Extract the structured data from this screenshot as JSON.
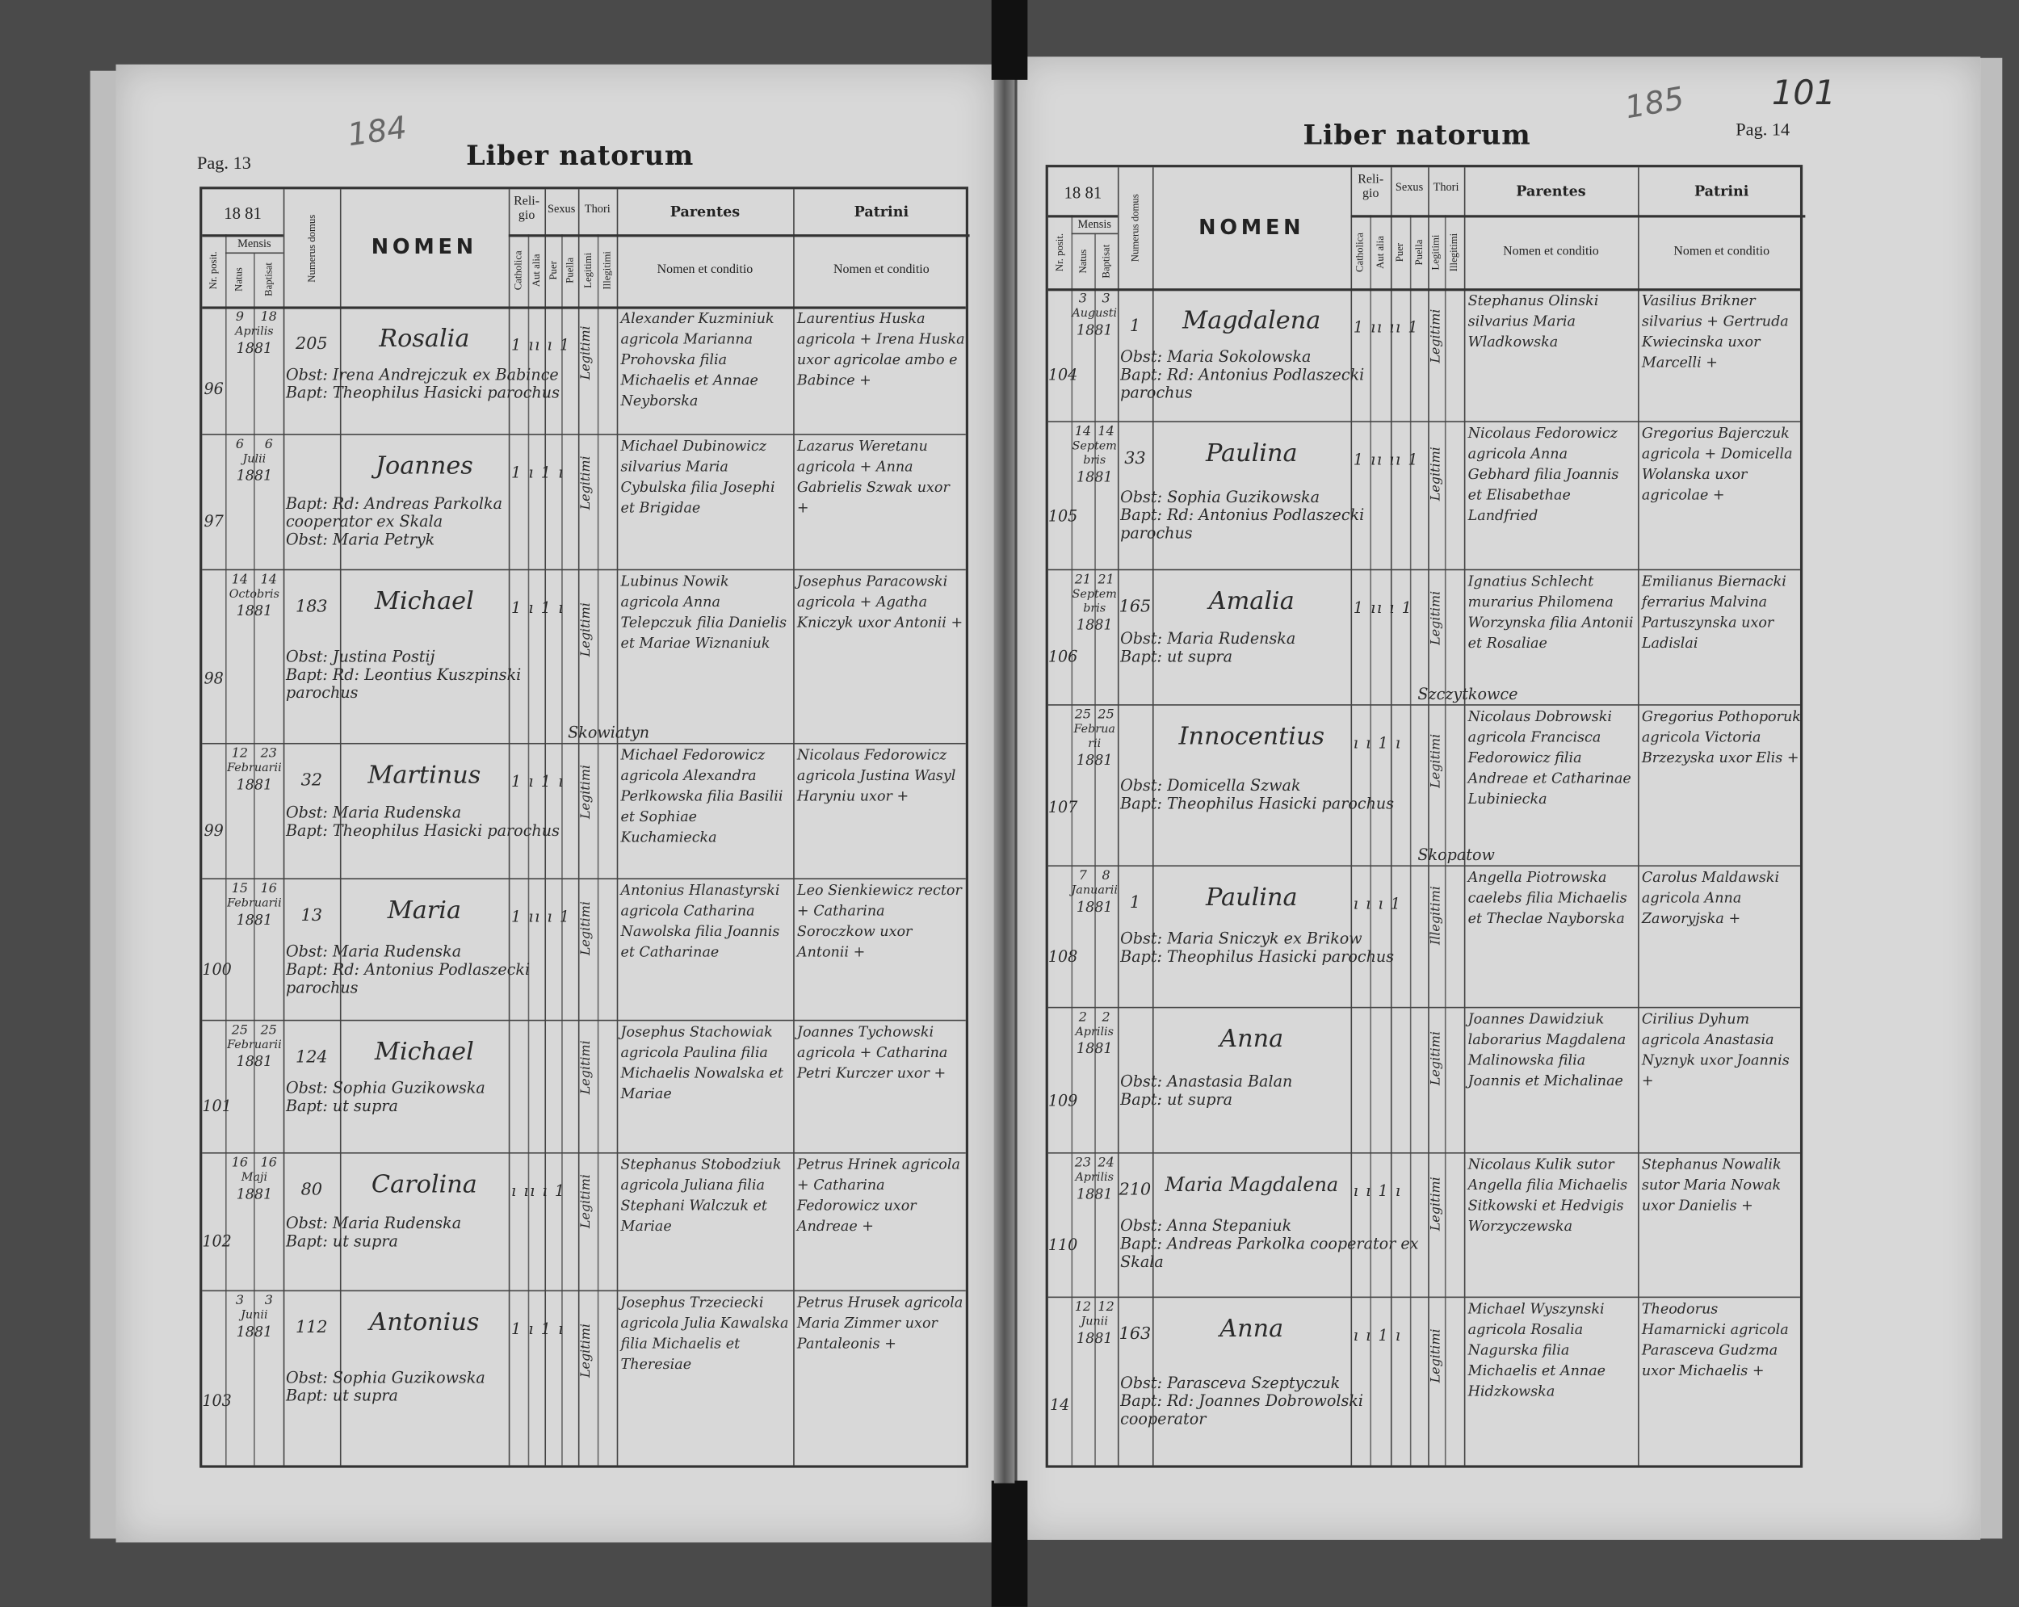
{
  "left_page": {
    "page_label": "Pag. 13",
    "pencil_number": "184",
    "title": "Liber natorum",
    "year": "18 81",
    "headers": {
      "nr": "Nr. posit.",
      "mensis": "Mensis",
      "natus": "Natus",
      "baptisat": "Baptisat",
      "numerus_domus": "Numerus domus",
      "nomen": "NOMEN",
      "religio": "Reli-gio",
      "catholica": "Catholica",
      "aut_alia": "Aut alia",
      "sexus": "Sexus",
      "puer": "Puer",
      "puella": "Puella",
      "thori": "Thori",
      "legitimi": "Legitimi",
      "illegitimi": "Illegitimi",
      "parentes": "Parentes",
      "parentes_sub": "Nomen et conditio",
      "patrini": "Patrini",
      "patrini_sub": "Nomen et conditio"
    },
    "rows": [
      {
        "nr": "96",
        "natus": "9",
        "baptisat": "18",
        "month": "Aprilis",
        "year": "1881",
        "domus": "205",
        "nomen": "Rosalia",
        "marks": "1 ıı ı 1",
        "thori": "Legitimi",
        "obst": "Obst: Irena Andrejczuk ex Babince",
        "bapt": "Bapt: Theophilus Hasicki parochus",
        "parentes": "Alexander Kuzminiuk agricola Marianna Prohovska filia Michaelis et Annae Neyborska",
        "patrini": "Laurentius Huska agricola + Irena Huska uxor agricolae ambo e Babince +"
      },
      {
        "nr": "97",
        "natus": "6",
        "baptisat": "6",
        "month": "Julii",
        "year": "1881",
        "domus": "",
        "nomen": "Joannes",
        "marks": "1 ı 1 ı",
        "thori": "Legitimi",
        "obst": "Bapt: Rd: Andreas Parkolka cooperator ex Skala",
        "bapt": "Obst: Maria Petryk",
        "parentes": "Michael Dubinowicz silvarius Maria Cybulska filia Josephi et Brigidae",
        "patrini": "Lazarus Weretanu agricola + Anna Gabrielis Szwak uxor +"
      },
      {
        "nr": "98",
        "natus": "14",
        "baptisat": "14",
        "month": "Octobris",
        "year": "1881",
        "domus": "183",
        "nomen": "Michael",
        "marks": "1 ı 1 ı",
        "thori": "Legitimi",
        "obst": "Obst: Justina Postij",
        "bapt": "Bapt: Rd: Leontius Kuszpinski parochus",
        "parentes": "Lubinus Nowik agricola Anna Telepczuk filia Danielis et Mariae Wiznaniuk",
        "patrini": "Josephus Paracowski agricola + Agatha Kniczyk uxor Antonii +",
        "annot": "Skowiatyn"
      },
      {
        "nr": "99",
        "natus": "12",
        "baptisat": "23",
        "month": "Februarii",
        "year": "1881",
        "domus": "32",
        "nomen": "Martinus",
        "marks": "1 ı 1 ı",
        "thori": "Legitimi",
        "obst": "Obst: Maria Rudenska",
        "bapt": "Bapt: Theophilus Hasicki parochus",
        "parentes": "Michael Fedorowicz agricola Alexandra Perlkowska filia Basilii et Sophiae Kuchamiecka",
        "patrini": "Nicolaus Fedorowicz agricola Justina Wasyl Haryniu uxor +"
      },
      {
        "nr": "100",
        "natus": "15",
        "baptisat": "16",
        "month": "Februarii",
        "year": "1881",
        "domus": "13",
        "nomen": "Maria",
        "marks": "1 ıı ı 1",
        "thori": "Legitimi",
        "obst": "Obst: Maria Rudenska",
        "bapt": "Bapt: Rd: Antonius Podlaszecki parochus",
        "parentes": "Antonius Hlanastyrski agricola Catharina Nawolska filia Joannis et Catharinae",
        "patrini": "Leo Sienkiewicz rector + Catharina Soroczkow uxor Antonii +"
      },
      {
        "nr": "101",
        "natus": "25",
        "baptisat": "25",
        "month": "Februarii",
        "year": "1881",
        "domus": "124",
        "nomen": "Michael",
        "marks": "",
        "thori": "Legitimi",
        "obst": "Obst: Sophia Guzikowska",
        "bapt": "Bapt: ut supra",
        "parentes": "Josephus Stachowiak agricola Paulina filia Michaelis Nowalska et Mariae",
        "patrini": "Joannes Tychowski agricola + Catharina Petri Kurczer uxor +"
      },
      {
        "nr": "102",
        "natus": "16",
        "baptisat": "16",
        "month": "Maji",
        "year": "1881",
        "domus": "80",
        "nomen": "Carolina",
        "marks": "ı ıı ı 1",
        "thori": "Legitimi",
        "obst": "Obst: Maria Rudenska",
        "bapt": "Bapt: ut supra",
        "parentes": "Stephanus Stobodziuk agricola Juliana filia Stephani Walczuk et Mariae",
        "patrini": "Petrus Hrinek agricola + Catharina Fedorowicz uxor Andreae +"
      },
      {
        "nr": "103",
        "natus": "3",
        "baptisat": "3",
        "month": "Junii",
        "year": "1881",
        "domus": "112",
        "nomen": "Antonius",
        "marks": "1 ı 1 ı",
        "thori": "Legitimi",
        "obst": "Obst: Sophia Guzikowska",
        "bapt": "Bapt: ut supra",
        "parentes": "Josephus Trzeciecki agricola Julia Kawalska filia Michaelis et Theresiae",
        "patrini": "Petrus Hrusek agricola Maria Zimmer uxor Pantaleonis +"
      }
    ]
  },
  "right_page": {
    "page_label": "Pag. 14",
    "pencil_number": "185",
    "ink_number": "101",
    "title": "Liber natorum",
    "year": "18 81",
    "headers": {
      "nr": "Nr. posit.",
      "mensis": "Mensis",
      "natus": "Natus",
      "baptisat": "Baptisat",
      "numerus_domus": "Numerus domus",
      "nomen": "NOMEN",
      "religio": "Reli-gio",
      "catholica": "Catholica",
      "aut_alia": "Aut alia",
      "sexus": "Sexus",
      "puer": "Puer",
      "puella": "Puella",
      "thori": "Thori",
      "legitimi": "Legitimi",
      "illegitimi": "Illegitimi",
      "parentes": "Parentes",
      "parentes_sub": "Nomen et conditio",
      "patrini": "Patrini",
      "patrini_sub": "Nomen et conditio"
    },
    "rows": [
      {
        "nr": "104",
        "natus": "3",
        "baptisat": "3",
        "month": "Augusti",
        "year": "1881",
        "domus": "1",
        "nomen": "Magdalena",
        "marks": "1 ıı ıı 1",
        "thori": "Legitimi",
        "obst": "Obst: Maria Sokolowska",
        "bapt": "Bapt: Rd: Antonius Podlaszecki parochus",
        "parentes": "Stephanus Olinski silvarius Maria Wladkowska",
        "patrini": "Vasilius Brikner silvarius + Gertruda Kwiecinska uxor Marcelli +"
      },
      {
        "nr": "105",
        "natus": "14",
        "baptisat": "14",
        "month": "Septembris",
        "year": "1881",
        "domus": "33",
        "nomen": "Paulina",
        "marks": "1 ıı ıı 1",
        "thori": "Legitimi",
        "obst": "Obst: Sophia Guzikowska",
        "bapt": "Bapt: Rd: Antonius Podlaszecki parochus",
        "parentes": "Nicolaus Fedorowicz agricola Anna Gebhard filia Joannis et Elisabethae Landfried",
        "patrini": "Gregorius Bajerczuk agricola + Domicella Wolanska uxor agricolae +"
      },
      {
        "nr": "106",
        "natus": "21",
        "baptisat": "21",
        "month": "Septembris",
        "year": "1881",
        "domus": "165",
        "nomen": "Amalia",
        "marks": "1 ıı ı 1",
        "thori": "Legitimi",
        "obst": "Obst: Maria Rudenska",
        "bapt": "Bapt: ut supra",
        "parentes": "Ignatius Schlecht murarius Philomena Worzynska filia Antonii et Rosaliae",
        "patrini": "Emilianus Biernacki ferrarius Malvina Partuszynska uxor Ladislai",
        "annot": "Szczytkowce"
      },
      {
        "nr": "107",
        "natus": "25",
        "baptisat": "25",
        "month": "Februarii",
        "year": "1881",
        "domus": "",
        "nomen": "Innocentius",
        "marks": "ı ı 1 ı",
        "thori": "Legitimi",
        "obst": "Obst: Domicella Szwak",
        "bapt": "Bapt: Theophilus Hasicki parochus",
        "parentes": "Nicolaus Dobrowski agricola Francisca Fedorowicz filia Andreae et Catharinae Lubiniecka",
        "patrini": "Gregorius Pothoporuk agricola Victoria Brzezyska uxor Elis +",
        "annot": "Skopatow"
      },
      {
        "nr": "108",
        "natus": "7",
        "baptisat": "8",
        "month": "Januarii",
        "year": "1881",
        "domus": "1",
        "nomen": "Paulina",
        "marks": "ı ı ı 1",
        "thori": "Illegitimi",
        "obst": "Obst: Maria Sniczyk ex Brikow",
        "bapt": "Bapt: Theophilus Hasicki parochus",
        "parentes": "Angella Piotrowska caelebs filia Michaelis et Theclae Nayborska",
        "patrini": "Carolus Maldawski agricola Anna Zaworyjska +"
      },
      {
        "nr": "109",
        "natus": "2",
        "baptisat": "2",
        "month": "Aprilis",
        "year": "1881",
        "domus": "",
        "nomen": "Anna",
        "marks": "",
        "thori": "Legitimi",
        "obst": "Obst: Anastasia Balan",
        "bapt": "Bapt: ut supra",
        "parentes": "Joannes Dawidziuk laborarius Magdalena Malinowska filia Joannis et Michalinae",
        "patrini": "Cirilius Dyhum agricola Anastasia Nyznyk uxor Joannis +"
      },
      {
        "nr": "110",
        "natus": "23",
        "baptisat": "24",
        "month": "Aprilis",
        "year": "1881",
        "domus": "210",
        "nomen": "Maria Magdalena",
        "marks": "ı ı 1 ı",
        "thori": "Legitimi",
        "obst": "Obst: Anna Stepaniuk",
        "bapt": "Bapt: Andreas Parkolka cooperator ex Skala",
        "parentes": "Nicolaus Kulik sutor Angella filia Michaelis Sitkowski et Hedvigis Worzyczewska",
        "patrini": "Stephanus Nowalik sutor Maria Nowak uxor Danielis +"
      },
      {
        "nr": "14",
        "natus": "12",
        "baptisat": "12",
        "month": "Junii",
        "year": "1881",
        "domus": "163",
        "nomen": "Anna",
        "marks": "ı ı 1 ı",
        "thori": "Legitimi",
        "obst": "Obst: Parasceva Szeptyczuk",
        "bapt": "Bapt: Rd: Joannes Dobrowolski cooperator",
        "parentes": "Michael Wyszynski agricola Rosalia Nagurska filia Michaelis et Annae Hidzkowska",
        "patrini": "Theodorus Hamarnicki agricola Parasceva Gudzma uxor Michaelis +"
      }
    ]
  }
}
